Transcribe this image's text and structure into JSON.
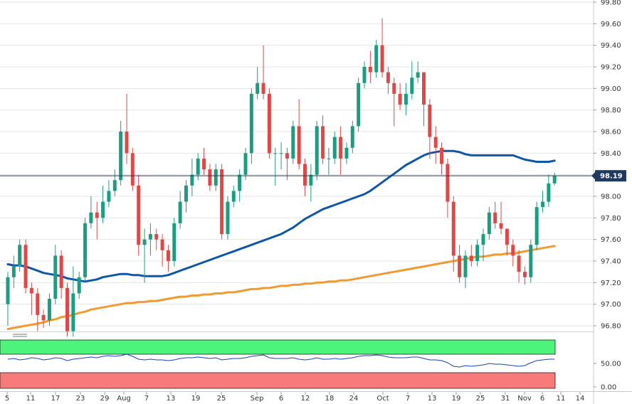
{
  "chart_data": {
    "type": "candlestick",
    "ylim": [
      96.75,
      99.8
    ],
    "y_ticks": [
      "99.80",
      "99.60",
      "99.40",
      "99.20",
      "99.00",
      "98.80",
      "98.60",
      "98.40",
      "98.20",
      "98.00",
      "97.80",
      "97.60",
      "97.40",
      "97.20",
      "97.00",
      "96.80"
    ],
    "x_ticks": [
      "5",
      "11",
      "17",
      "23",
      "29",
      "Aug",
      "7",
      "13",
      "19",
      "25",
      "Sep",
      "6",
      "12",
      "18",
      "24",
      "Oct",
      "7",
      "13",
      "19",
      "25",
      "31",
      "Nov",
      "6",
      "11",
      "14"
    ],
    "current_price": 98.19,
    "current_price_label": "98.19",
    "candles": [
      [
        97.0,
        97.25,
        97.3,
        96.8
      ],
      [
        97.25,
        97.35,
        97.45,
        97.15
      ],
      [
        97.35,
        97.55,
        97.6,
        97.3
      ],
      [
        97.55,
        97.15,
        97.6,
        97.1
      ],
      [
        97.15,
        97.1,
        97.2,
        96.9
      ],
      [
        97.1,
        96.9,
        97.15,
        96.75
      ],
      [
        96.9,
        96.85,
        96.95,
        96.78
      ],
      [
        96.85,
        97.05,
        97.1,
        96.8
      ],
      [
        97.05,
        97.45,
        97.55,
        97.0
      ],
      [
        97.45,
        97.15,
        97.5,
        97.05
      ],
      [
        97.15,
        96.75,
        97.2,
        96.7
      ],
      [
        96.75,
        97.1,
        97.35,
        96.7
      ],
      [
        97.1,
        97.25,
        97.3,
        97.05
      ],
      [
        97.25,
        97.75,
        97.8,
        97.2
      ],
      [
        97.75,
        97.85,
        98.0,
        97.7
      ],
      [
        97.85,
        97.8,
        97.95,
        97.6
      ],
      [
        97.8,
        97.95,
        98.1,
        97.75
      ],
      [
        97.95,
        98.05,
        98.15,
        97.9
      ],
      [
        98.05,
        98.15,
        98.25,
        98.0
      ],
      [
        98.15,
        98.6,
        98.7,
        98.1
      ],
      [
        98.6,
        98.4,
        98.95,
        98.3
      ],
      [
        98.4,
        98.1,
        98.45,
        98.05
      ],
      [
        98.1,
        97.55,
        98.2,
        97.45
      ],
      [
        97.55,
        97.6,
        97.7,
        97.2
      ],
      [
        97.6,
        97.65,
        97.75,
        97.45
      ],
      [
        97.65,
        97.6,
        97.7,
        97.5
      ],
      [
        97.6,
        97.5,
        97.65,
        97.35
      ],
      [
        97.5,
        97.4,
        97.55,
        97.3
      ],
      [
        97.4,
        97.75,
        97.8,
        97.35
      ],
      [
        97.75,
        97.95,
        98.05,
        97.7
      ],
      [
        97.95,
        98.1,
        98.15,
        97.85
      ],
      [
        98.1,
        98.2,
        98.35,
        98.0
      ],
      [
        98.2,
        98.35,
        98.4,
        98.15
      ],
      [
        98.35,
        98.25,
        98.45,
        98.2
      ],
      [
        98.25,
        98.1,
        98.3,
        98.05
      ],
      [
        98.1,
        98.25,
        98.3,
        98.05
      ],
      [
        98.25,
        97.65,
        98.3,
        97.6
      ],
      [
        97.65,
        97.95,
        98.0,
        97.6
      ],
      [
        97.95,
        98.05,
        98.1,
        97.9
      ],
      [
        98.05,
        98.2,
        98.25,
        97.95
      ],
      [
        98.2,
        98.4,
        98.45,
        98.15
      ],
      [
        98.4,
        98.95,
        99.0,
        98.3
      ],
      [
        98.95,
        99.05,
        99.2,
        98.9
      ],
      [
        99.05,
        98.95,
        99.4,
        98.9
      ],
      [
        98.95,
        98.4,
        99.0,
        98.35
      ],
      [
        98.4,
        98.4,
        98.45,
        98.1
      ],
      [
        98.4,
        98.4,
        98.5,
        98.25
      ],
      [
        98.4,
        98.35,
        98.45,
        98.15
      ],
      [
        98.35,
        98.65,
        98.7,
        98.3
      ],
      [
        98.65,
        98.3,
        98.9,
        98.25
      ],
      [
        98.3,
        98.1,
        98.35,
        98.0
      ],
      [
        98.1,
        98.2,
        98.3,
        97.95
      ],
      [
        98.2,
        98.65,
        98.7,
        98.15
      ],
      [
        98.65,
        98.35,
        98.75,
        98.3
      ],
      [
        98.35,
        98.35,
        98.45,
        98.2
      ],
      [
        98.35,
        98.55,
        98.6,
        98.3
      ],
      [
        98.55,
        98.35,
        98.65,
        98.2
      ],
      [
        98.35,
        98.45,
        98.5,
        98.3
      ],
      [
        98.45,
        98.65,
        98.7,
        98.4
      ],
      [
        98.65,
        99.05,
        99.1,
        98.6
      ],
      [
        99.05,
        99.2,
        99.25,
        99.0
      ],
      [
        99.2,
        99.15,
        99.35,
        99.05
      ],
      [
        99.15,
        99.4,
        99.45,
        99.1
      ],
      [
        99.4,
        99.15,
        99.65,
        99.1
      ],
      [
        99.15,
        99.05,
        99.2,
        98.95
      ],
      [
        99.05,
        98.95,
        99.1,
        98.65
      ],
      [
        98.95,
        98.85,
        99.05,
        98.8
      ],
      [
        98.85,
        98.95,
        99.05,
        98.75
      ],
      [
        98.95,
        99.1,
        99.25,
        98.9
      ],
      [
        99.1,
        99.15,
        99.25,
        99.05
      ],
      [
        99.15,
        98.85,
        99.15,
        98.65
      ],
      [
        98.85,
        98.55,
        98.9,
        98.35
      ],
      [
        98.55,
        98.45,
        98.65,
        98.3
      ],
      [
        98.45,
        98.3,
        98.5,
        98.2
      ],
      [
        98.3,
        97.95,
        98.35,
        97.8
      ],
      [
        97.95,
        97.45,
        98.0,
        97.3
      ],
      [
        97.45,
        97.25,
        97.55,
        97.2
      ],
      [
        97.25,
        97.45,
        97.5,
        97.15
      ],
      [
        97.45,
        97.4,
        97.55,
        97.35
      ],
      [
        97.4,
        97.55,
        97.6,
        97.35
      ],
      [
        97.55,
        97.65,
        97.7,
        97.4
      ],
      [
        97.65,
        97.85,
        97.9,
        97.6
      ],
      [
        97.85,
        97.75,
        97.95,
        97.7
      ],
      [
        97.75,
        97.7,
        97.95,
        97.65
      ],
      [
        97.7,
        97.55,
        97.7,
        97.45
      ],
      [
        97.55,
        97.45,
        97.6,
        97.35
      ],
      [
        97.45,
        97.3,
        97.5,
        97.2
      ],
      [
        97.3,
        97.25,
        97.35,
        97.18
      ],
      [
        97.25,
        97.55,
        97.6,
        97.2
      ],
      [
        97.55,
        97.9,
        97.95,
        97.5
      ],
      [
        97.9,
        97.95,
        98.05,
        97.85
      ],
      [
        97.95,
        98.12,
        98.2,
        97.9
      ],
      [
        98.12,
        98.19,
        98.22,
        98.1
      ]
    ],
    "ma_50": [
      97.37,
      97.36,
      97.36,
      97.35,
      97.33,
      97.31,
      97.29,
      97.28,
      97.27,
      97.26,
      97.24,
      97.23,
      97.22,
      97.21,
      97.22,
      97.23,
      97.25,
      97.26,
      97.27,
      97.28,
      97.28,
      97.27,
      97.27,
      97.26,
      97.26,
      97.26,
      97.26,
      97.27,
      97.29,
      97.31,
      97.33,
      97.35,
      97.37,
      97.39,
      97.41,
      97.43,
      97.45,
      97.47,
      97.49,
      97.51,
      97.53,
      97.55,
      97.57,
      97.59,
      97.61,
      97.63,
      97.65,
      97.68,
      97.71,
      97.75,
      97.79,
      97.82,
      97.85,
      97.88,
      97.9,
      97.92,
      97.94,
      97.96,
      97.98,
      98.0,
      98.02,
      98.05,
      98.09,
      98.13,
      98.17,
      98.21,
      98.25,
      98.29,
      98.32,
      98.35,
      98.38,
      98.4,
      98.41,
      98.42,
      98.42,
      98.42,
      98.41,
      98.39,
      98.38,
      98.38,
      98.38,
      98.38,
      98.38,
      98.38,
      98.38,
      98.38,
      98.36,
      98.34,
      98.33,
      98.32,
      98.32,
      98.32,
      98.33
    ],
    "ma_200": [
      96.77,
      96.78,
      96.79,
      96.8,
      96.81,
      96.82,
      96.83,
      96.85,
      96.86,
      96.88,
      96.89,
      96.9,
      96.92,
      96.93,
      96.95,
      96.96,
      96.97,
      96.98,
      96.99,
      97.0,
      97.01,
      97.01,
      97.02,
      97.02,
      97.03,
      97.03,
      97.04,
      97.05,
      97.06,
      97.07,
      97.07,
      97.08,
      97.08,
      97.09,
      97.09,
      97.1,
      97.1,
      97.11,
      97.11,
      97.12,
      97.13,
      97.14,
      97.14,
      97.15,
      97.15,
      97.16,
      97.17,
      97.17,
      97.18,
      97.18,
      97.19,
      97.19,
      97.2,
      97.2,
      97.21,
      97.21,
      97.22,
      97.22,
      97.23,
      97.24,
      97.25,
      97.26,
      97.27,
      97.28,
      97.29,
      97.3,
      97.31,
      97.32,
      97.33,
      97.34,
      97.35,
      97.36,
      97.37,
      97.38,
      97.39,
      97.4,
      97.41,
      97.42,
      97.43,
      97.44,
      97.44,
      97.45,
      97.46,
      97.46,
      97.47,
      97.47,
      97.48,
      97.49,
      97.5,
      97.51,
      97.52,
      97.53,
      97.54
    ]
  },
  "indicator": {
    "y_ticks": [
      "50.00",
      "0.00"
    ],
    "values": [
      56,
      57,
      55,
      56,
      58,
      57,
      55,
      56,
      58,
      57,
      54,
      56,
      57,
      58,
      59,
      58,
      60,
      61,
      60,
      61,
      63,
      60,
      56,
      55,
      56,
      55,
      55,
      54,
      55,
      57,
      58,
      58,
      59,
      58,
      57,
      58,
      55,
      56,
      57,
      57,
      58,
      60,
      61,
      62,
      58,
      57,
      57,
      57,
      58,
      56,
      55,
      56,
      58,
      56,
      56,
      57,
      56,
      57,
      58,
      60,
      61,
      61,
      62,
      61,
      59,
      58,
      58,
      58,
      59,
      59,
      57,
      55,
      55,
      54,
      51,
      46,
      45,
      47,
      46,
      47,
      48,
      50,
      49,
      49,
      48,
      47,
      46,
      47,
      51,
      54,
      55,
      56,
      56
    ]
  },
  "colors": {
    "up": "#1a9e82",
    "down": "#e04848",
    "ma_50": "#0e57a7",
    "ma_200": "#f29a32",
    "price_line": "#1f3a5f",
    "price_tag": "#1f3a5f",
    "overbought": "#4cf57a",
    "oversold": "#f77a7a",
    "indicator_line": "#1a3fb8",
    "grid": "#e6e6e6",
    "axis_text": "#333333"
  }
}
